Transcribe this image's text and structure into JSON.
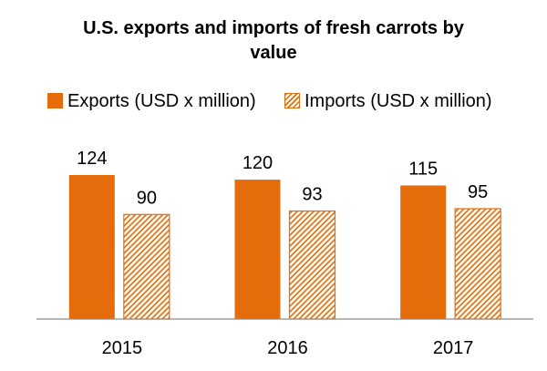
{
  "chart_data": {
    "type": "bar",
    "title": "U.S. exports and imports of fresh carrots by value",
    "title_lines": [
      "U.S. exports and imports of fresh carrots by",
      "value"
    ],
    "categories": [
      "2015",
      "2016",
      "2017"
    ],
    "series": [
      {
        "name": "Exports (USD x million)",
        "values": [
          124,
          120,
          115
        ],
        "color": "#E46C0A",
        "fill": "solid"
      },
      {
        "name": "Imports (USD x million)",
        "values": [
          90,
          93,
          95
        ],
        "color": "#E46C0A",
        "fill": "diagonal-hatch"
      }
    ],
    "data_labels": true,
    "ylim": [
      0,
      150
    ],
    "grid": false,
    "yaxis_visible": false,
    "legend_position": "top"
  }
}
